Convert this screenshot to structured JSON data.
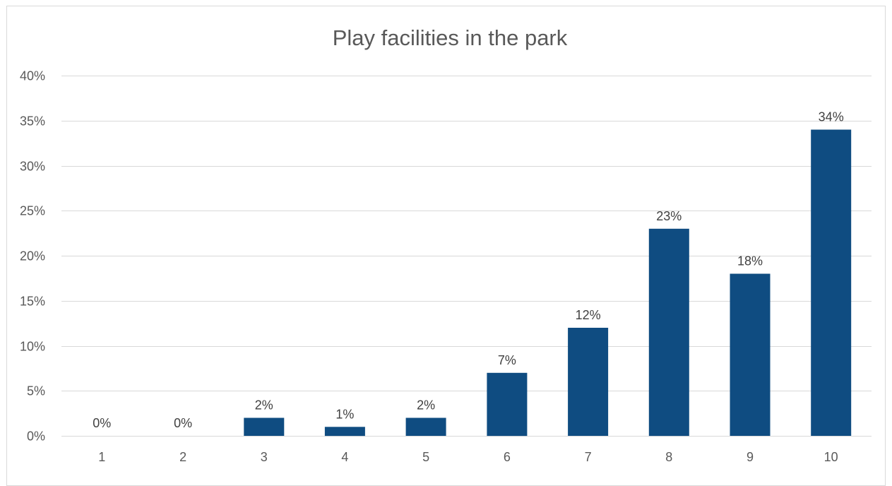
{
  "chart_data": {
    "type": "bar",
    "title": "Play facilities in the park",
    "xlabel": "",
    "ylabel": "",
    "categories": [
      "1",
      "2",
      "3",
      "4",
      "5",
      "6",
      "7",
      "8",
      "9",
      "10"
    ],
    "values": [
      0,
      0,
      2,
      1,
      2,
      7,
      12,
      23,
      18,
      34
    ],
    "data_labels": [
      "0%",
      "0%",
      "2%",
      "1%",
      "2%",
      "7%",
      "12%",
      "23%",
      "18%",
      "34%"
    ],
    "ylim": [
      0,
      40
    ],
    "yticks": [
      0,
      5,
      10,
      15,
      20,
      25,
      30,
      35,
      40
    ],
    "ytick_labels": [
      "0%",
      "5%",
      "10%",
      "15%",
      "20%",
      "25%",
      "30%",
      "35%",
      "40%"
    ],
    "grid": true,
    "legend": "none",
    "bar_color": "#0F4C81"
  }
}
